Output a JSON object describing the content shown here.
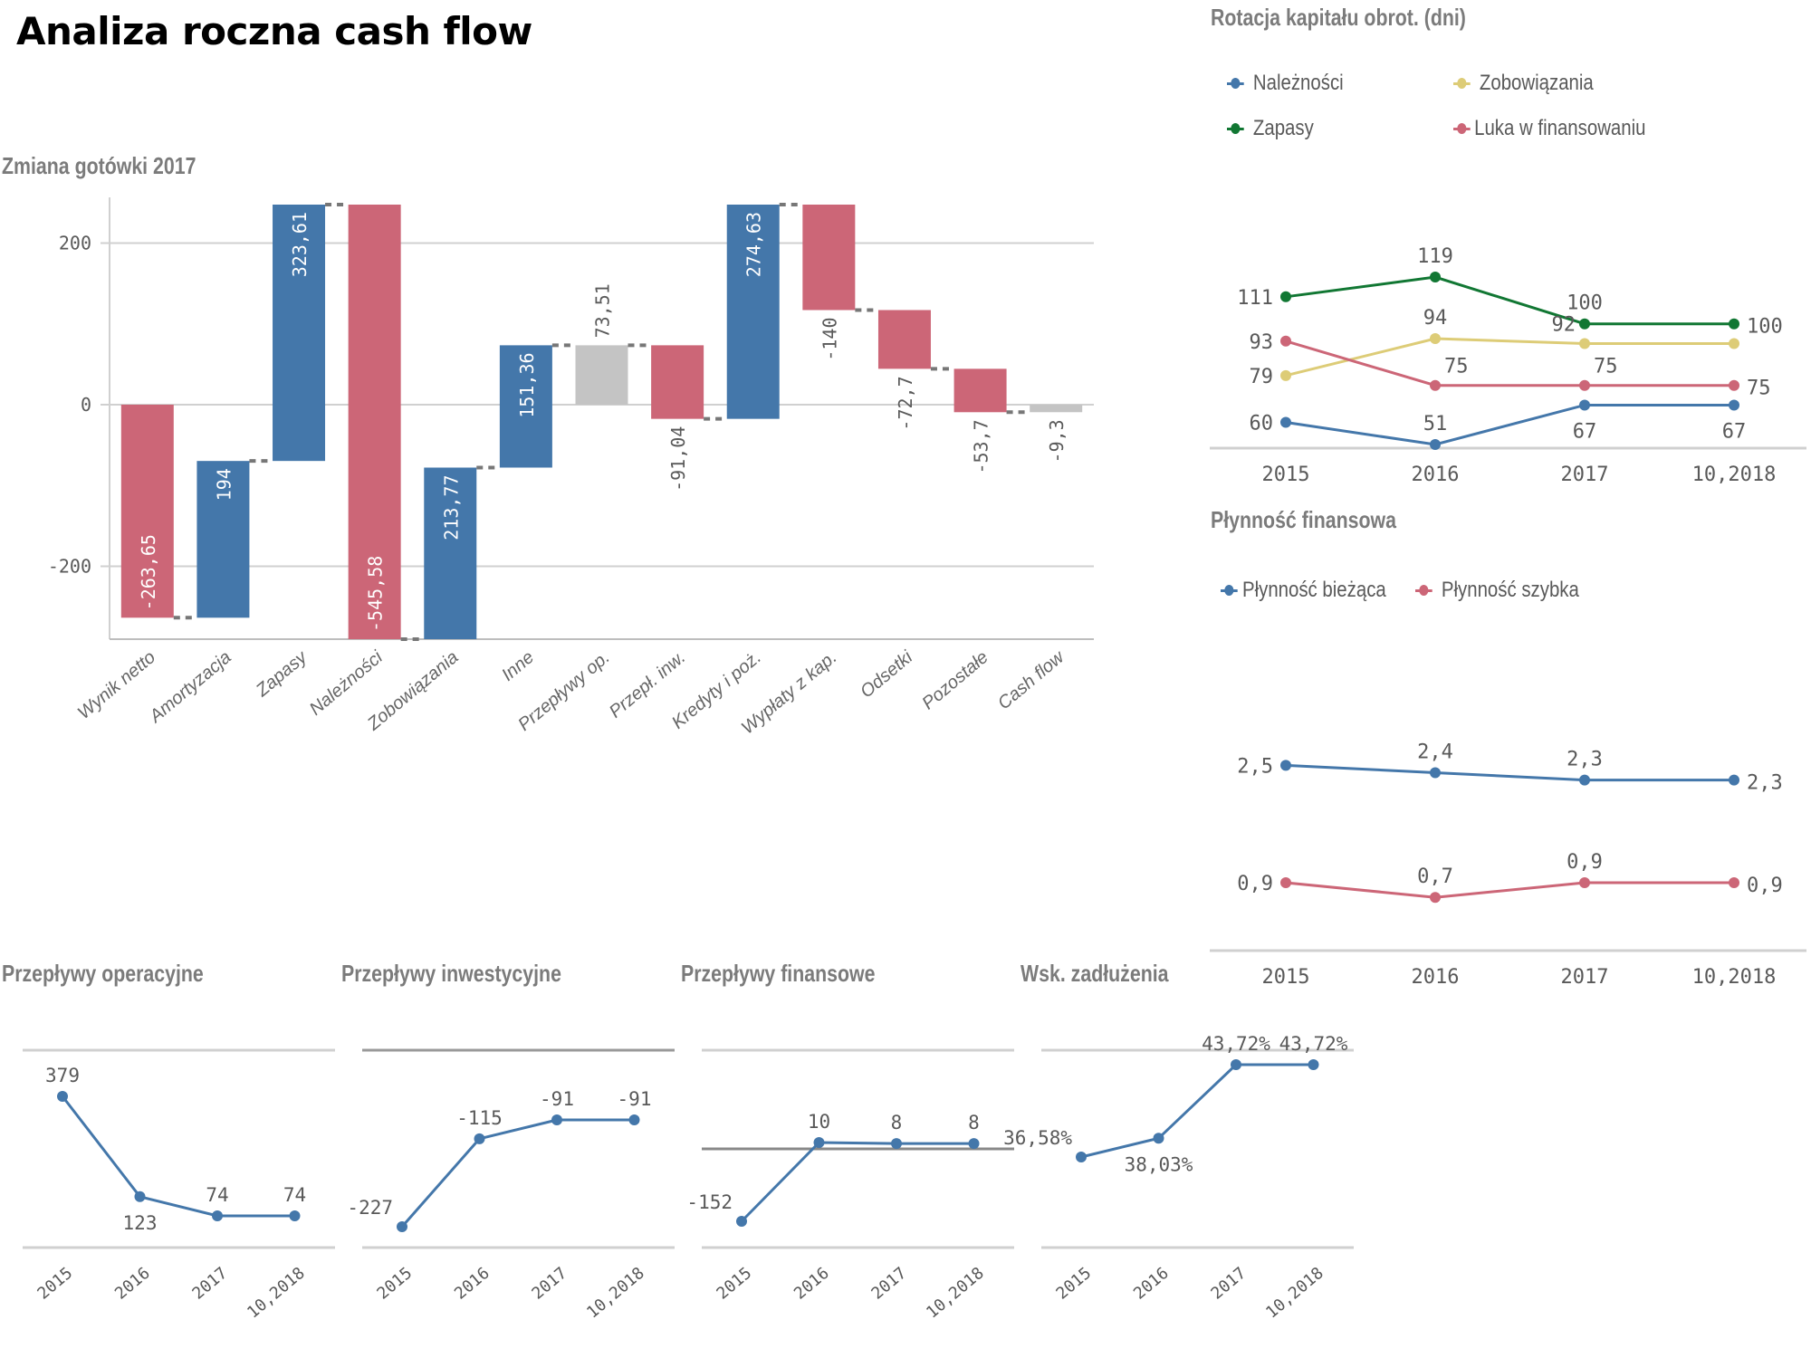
{
  "page": {
    "title": "Analiza roczna cash flow"
  },
  "colors": {
    "positive": "#4477aa",
    "negative": "#cc6677",
    "subtotal": "#c4c4c4",
    "green": "#117733",
    "yellow": "#ddcc77",
    "grid": "#d0d0d0",
    "text": "#595959"
  },
  "panels": {
    "waterfall_title": "Zmiana gotówki 2017",
    "rotacja_title": "Rotacja kapitału obrot. (dni)",
    "plynnosc_title": "Płynność finansowa",
    "oper_title": "Przepływy operacyjne",
    "inw_title": "Przepływy inwestycyjne",
    "fin_title": "Przepływy finansowe",
    "zadl_title": "Wsk. zadłużenia"
  },
  "chart_data": [
    {
      "id": "waterfall",
      "type": "bar",
      "subtype": "waterfall",
      "title": "Zmiana gotówki 2017",
      "ylim": [
        -290,
        256
      ],
      "yticks": [
        -200,
        0,
        200
      ],
      "ytick_labels": [
        "-200",
        "0",
        "200"
      ],
      "grid": true,
      "categories": [
        "Wynik netto",
        "Amortyzacja",
        "Zapasy",
        "Należności",
        "Zobowiązania",
        "Inne",
        "Przepływy op.",
        "Przepł. inw.",
        "Kredyty i poż.",
        "Wypłaty z kap.",
        "Odsetki",
        "Pozostałe",
        "Cash flow"
      ],
      "values": [
        -263.65,
        194,
        323.61,
        -545.58,
        213.77,
        151.36,
        73.51,
        -91.04,
        274.63,
        -140,
        -72.7,
        -53.7,
        -9.3
      ],
      "labels": [
        "-263,65",
        "194",
        "323,61",
        "-545,58",
        "213,77",
        "151,36",
        "73,51",
        "-91,04",
        "274,63",
        "-140",
        "-72,7",
        "-53,7",
        "-9,3"
      ],
      "kinds": [
        "change",
        "change",
        "change",
        "change",
        "change",
        "change",
        "total",
        "change",
        "change",
        "change",
        "change",
        "change",
        "total"
      ]
    },
    {
      "id": "rotacja",
      "type": "line",
      "title": "Rotacja kapitału obrot. (dni)",
      "x": [
        "2015",
        "2016",
        "2017",
        "10,2018"
      ],
      "legend_position": "top",
      "series": [
        {
          "name": "Należności",
          "color": "#4477aa",
          "values": [
            60,
            51,
            67,
            67
          ],
          "labels": [
            "60",
            "51",
            "67",
            "67"
          ]
        },
        {
          "name": "Zapasy",
          "color": "#117733",
          "values": [
            111,
            119,
            100,
            100
          ],
          "labels": [
            "111",
            "119",
            "100",
            "100"
          ]
        },
        {
          "name": "Zobowiązania",
          "color": "#ddcc77",
          "values": [
            79,
            94,
            92,
            92
          ],
          "labels": [
            "79",
            "94",
            "92",
            ""
          ]
        },
        {
          "name": "Luka w finansowaniu",
          "color": "#cc6677",
          "values": [
            93,
            75,
            75,
            75
          ],
          "labels": [
            "93",
            "75",
            "75",
            "75"
          ]
        }
      ]
    },
    {
      "id": "plynnosc",
      "type": "line",
      "title": "Płynność finansowa",
      "x": [
        "2015",
        "2016",
        "2017",
        "10,2018"
      ],
      "legend_position": "top",
      "series": [
        {
          "name": "Płynność bieżąca",
          "color": "#4477aa",
          "values": [
            2.5,
            2.4,
            2.3,
            2.3
          ],
          "labels": [
            "2,5",
            "2,4",
            "2,3",
            "2,3"
          ]
        },
        {
          "name": "Płynność szybka",
          "color": "#cc6677",
          "values": [
            0.9,
            0.7,
            0.9,
            0.9
          ],
          "labels": [
            "0,9",
            "0,7",
            "0,9",
            "0,9"
          ]
        }
      ]
    },
    {
      "id": "oper",
      "type": "line",
      "title": "Przepływy operacyjne",
      "x": [
        "2015",
        "2016",
        "2017",
        "10,2018"
      ],
      "ylim": [
        0,
        440
      ],
      "series": [
        {
          "name": "Przepływy operacyjne",
          "color": "#4477aa",
          "values": [
            379,
            123,
            74,
            74
          ],
          "labels": [
            "379",
            "123",
            "74",
            "74"
          ]
        }
      ]
    },
    {
      "id": "inw",
      "type": "line",
      "title": "Przepływy inwestycyjne",
      "x": [
        "2015",
        "2016",
        "2017",
        "10,2018"
      ],
      "ylim": [
        -260,
        0
      ],
      "series": [
        {
          "name": "Przepływy inwestycyjne",
          "color": "#4477aa",
          "values": [
            -227,
            -115,
            -91,
            -91
          ],
          "labels": [
            "-227",
            "-115",
            "-91",
            "-91"
          ]
        }
      ]
    },
    {
      "id": "fin",
      "type": "line",
      "title": "Przepływy finansowe",
      "x": [
        "2015",
        "2016",
        "2017",
        "10,2018"
      ],
      "ylim": [
        -200,
        150
      ],
      "series": [
        {
          "name": "Przepływy finansowe",
          "color": "#4477aa",
          "values": [
            -152,
            10,
            8,
            8
          ],
          "labels": [
            "-152",
            "10",
            "8",
            "8"
          ]
        }
      ]
    },
    {
      "id": "zadl",
      "type": "line",
      "title": "Wsk. zadłużenia",
      "x": [
        "2015",
        "2016",
        "2017",
        "10,2018"
      ],
      "ylim": [
        30,
        45
      ],
      "series": [
        {
          "name": "Wsk. zadłużenia",
          "color": "#4477aa",
          "values": [
            36.58,
            38.03,
            43.72,
            43.72
          ],
          "labels": [
            "36,58%",
            "38,03%",
            "43,72%",
            "43,72%"
          ]
        }
      ]
    }
  ]
}
